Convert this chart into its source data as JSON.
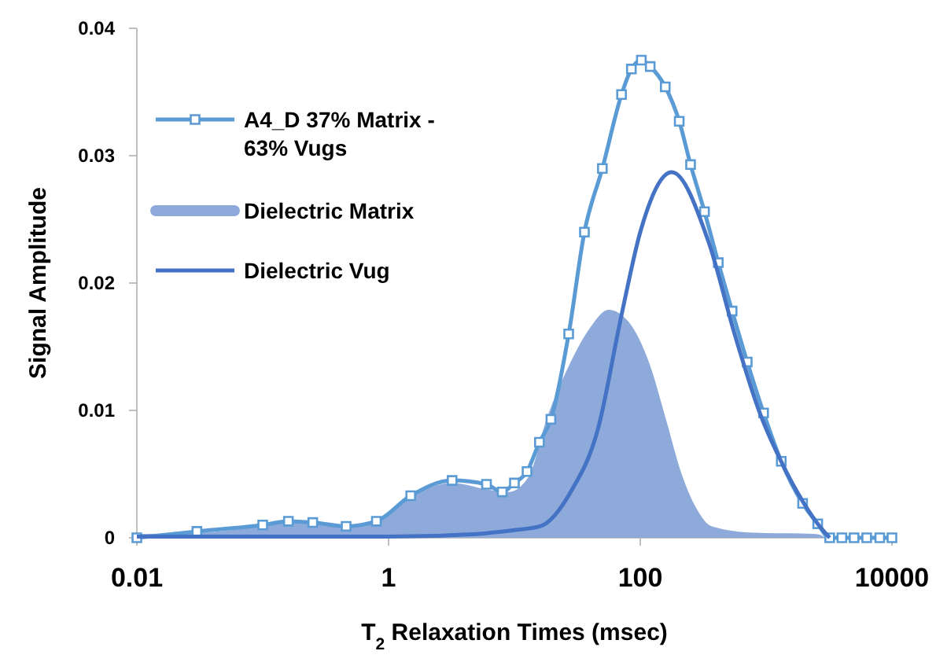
{
  "chart_data": {
    "type": "line",
    "xlabel": "T$_{2}$ Relaxation Times (msec)",
    "ylabel": "Signal Amplitude",
    "log": "x",
    "xlim": [
      0.01,
      10000
    ],
    "xticks": [
      0.01,
      1,
      100,
      10000
    ],
    "ylim": [
      0,
      0.04
    ],
    "yticks": [
      0,
      0.01,
      0.02,
      0.03,
      0.04
    ],
    "grid": false,
    "legend": "top left",
    "series": [
      {
        "name": "Dielectric Matrix",
        "type": "area",
        "color": "#8eaadb",
        "marker": "none",
        "x": [
          0.01,
          0.03,
          0.1,
          0.16,
          0.25,
          0.46,
          0.8,
          1.5,
          3.2,
          6,
          9,
          13,
          18,
          28,
          40,
          56,
          80,
          120,
          160,
          210,
          280,
          370,
          800,
          2500,
          3000
        ],
        "values": [
          0.0003,
          0.0004,
          0.0009,
          0.0012,
          0.0011,
          0.0008,
          0.0012,
          0.0032,
          0.0043,
          0.0038,
          0.0036,
          0.0048,
          0.0093,
          0.0138,
          0.0165,
          0.0179,
          0.017,
          0.0135,
          0.0093,
          0.0052,
          0.0023,
          0.0009,
          0.0004,
          0.0003,
          0
        ]
      },
      {
        "name": "A4_D 37% Matrix - 63% Vugs",
        "color": "#5b9bd5",
        "marker": "square",
        "line_style": "solid",
        "x": [
          0.01,
          0.03,
          0.1,
          0.16,
          0.25,
          0.46,
          0.8,
          1.5,
          3.2,
          6,
          8,
          10,
          12.6,
          15.8,
          19.5,
          27,
          36,
          50,
          71,
          85,
          102,
          120,
          158,
          204,
          251,
          324,
          417,
          537,
          708,
          955,
          1320,
          1950,
          2570,
          3200,
          4000,
          5000,
          6300,
          8000,
          10000
        ],
        "values": [
          0,
          0.0005,
          0.001,
          0.0013,
          0.0012,
          0.0009,
          0.0013,
          0.0033,
          0.0045,
          0.0042,
          0.0036,
          0.0043,
          0.0052,
          0.0075,
          0.0093,
          0.016,
          0.024,
          0.029,
          0.0348,
          0.0368,
          0.0375,
          0.037,
          0.0354,
          0.0327,
          0.0293,
          0.0256,
          0.0216,
          0.0178,
          0.0138,
          0.0098,
          0.006,
          0.0027,
          0.0011,
          0,
          0,
          0,
          0,
          0,
          0
        ]
      },
      {
        "name": "Dielectric Vug",
        "color": "#4472c4",
        "marker": "none",
        "line_style": "solid",
        "x": [
          0.01,
          1,
          5,
          10,
          16,
          28,
          46,
          71,
          100,
          178,
          347,
          562,
          891,
          1445,
          2570,
          3200
        ],
        "values": [
          0.0001,
          0.0001,
          0.0003,
          0.0006,
          0.0009,
          0.0036,
          0.0085,
          0.0175,
          0.024,
          0.0287,
          0.0233,
          0.016,
          0.0098,
          0.0052,
          0.0011,
          0
        ]
      }
    ]
  }
}
